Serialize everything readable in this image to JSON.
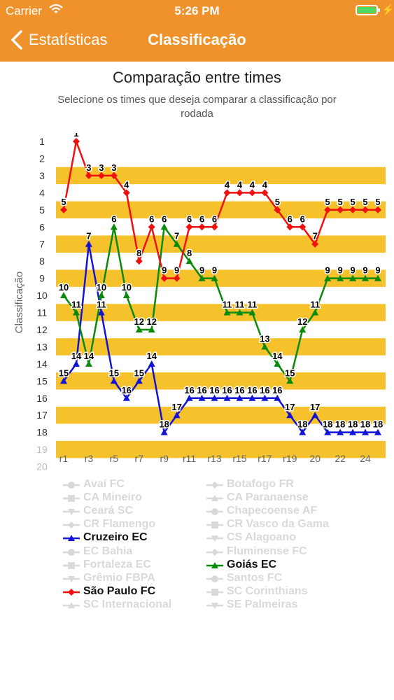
{
  "status_bar": {
    "carrier": "Carrier",
    "time": "5:26 PM"
  },
  "nav": {
    "back_label": "Estatísticas",
    "title": "Classificação"
  },
  "header": {
    "title": "Comparação entre times",
    "subtitle": "Selecione os times que deseja comparar a classificação por rodada"
  },
  "colors": {
    "accent": "#f0922c",
    "band": "#f6c22c",
    "cruzeiro": "#1313d6",
    "goias": "#0a8a0a",
    "saopaulo": "#f01010",
    "legend_off": "#d9d9d9"
  },
  "legend": {
    "left": [
      {
        "label": "Avaí FC",
        "marker": "circle",
        "active": false
      },
      {
        "label": "CA Mineiro",
        "marker": "square",
        "active": false
      },
      {
        "label": "Ceará SC",
        "marker": "triangle-down",
        "active": false
      },
      {
        "label": "CR Flamengo",
        "marker": "diamond",
        "active": false
      },
      {
        "label": "Cruzeiro EC",
        "marker": "triangle",
        "active": true,
        "color": "#1313d6"
      },
      {
        "label": "EC Bahia",
        "marker": "circle",
        "active": false
      },
      {
        "label": "Fortaleza EC",
        "marker": "square",
        "active": false
      },
      {
        "label": "Grêmio FBPA",
        "marker": "triangle-down",
        "active": false
      },
      {
        "label": "São Paulo FC",
        "marker": "diamond",
        "active": true,
        "color": "#f01010"
      },
      {
        "label": "SC Internacional",
        "marker": "triangle",
        "active": false
      }
    ],
    "right": [
      {
        "label": "Botafogo FR",
        "marker": "diamond",
        "active": false
      },
      {
        "label": "CA Paranaense",
        "marker": "triangle",
        "active": false
      },
      {
        "label": "Chapecoense AF",
        "marker": "circle",
        "active": false
      },
      {
        "label": "CR Vasco da Gama",
        "marker": "square",
        "active": false
      },
      {
        "label": "CS Alagoano",
        "marker": "triangle-down",
        "active": false
      },
      {
        "label": "Fluminense FC",
        "marker": "diamond",
        "active": false
      },
      {
        "label": "Goiás EC",
        "marker": "triangle",
        "active": true,
        "color": "#0a8a0a"
      },
      {
        "label": "Santos FC",
        "marker": "circle",
        "active": false
      },
      {
        "label": "SC Corinthians",
        "marker": "square",
        "active": false
      },
      {
        "label": "SE Palmeiras",
        "marker": "triangle-down",
        "active": false
      }
    ]
  },
  "chart_data": {
    "type": "line",
    "ylabel": "Classificação",
    "xlabel": "",
    "y_reversed": true,
    "ylim": [
      1,
      20
    ],
    "yticks": [
      1,
      2,
      3,
      4,
      5,
      6,
      7,
      8,
      9,
      10,
      11,
      12,
      13,
      14,
      15,
      16,
      17,
      18,
      19,
      20
    ],
    "xlim": [
      1,
      25
    ],
    "xticks": [
      {
        "x": 1,
        "label": "r1"
      },
      {
        "x": 3,
        "label": "r3"
      },
      {
        "x": 5,
        "label": "r5"
      },
      {
        "x": 7,
        "label": "r7"
      },
      {
        "x": 9,
        "label": "r9"
      },
      {
        "x": 11,
        "label": "r11"
      },
      {
        "x": 13,
        "label": "r13"
      },
      {
        "x": 15,
        "label": "r15"
      },
      {
        "x": 17,
        "label": "r17"
      },
      {
        "x": 19,
        "label": "r19"
      },
      {
        "x": 21,
        "label": "20"
      },
      {
        "x": 23,
        "label": "22"
      },
      {
        "x": 25,
        "label": "24"
      }
    ],
    "bands": [
      [
        2,
        3
      ],
      [
        4,
        5
      ],
      [
        6,
        7
      ],
      [
        8,
        9
      ],
      [
        10,
        11
      ],
      [
        12,
        13
      ],
      [
        14,
        15
      ],
      [
        16,
        17
      ],
      [
        18,
        19
      ]
    ],
    "x": [
      1,
      2,
      3,
      4,
      5,
      6,
      7,
      8,
      9,
      10,
      11,
      12,
      13,
      14,
      15,
      16,
      17,
      18,
      19,
      20,
      21,
      22,
      23,
      24,
      25,
      26
    ],
    "series": [
      {
        "name": "Cruzeiro EC",
        "color": "#1313d6",
        "marker": "triangle",
        "values": [
          15,
          14,
          7,
          11,
          15,
          16,
          15,
          14,
          18,
          17,
          16,
          16,
          16,
          16,
          16,
          16,
          16,
          16,
          17,
          18,
          17,
          18,
          18,
          18,
          18,
          18
        ]
      },
      {
        "name": "Goiás EC",
        "color": "#0a8a0a",
        "marker": "triangle",
        "values": [
          10,
          11,
          14,
          10,
          6,
          10,
          12,
          12,
          6,
          7,
          8,
          9,
          9,
          11,
          11,
          11,
          13,
          14,
          15,
          12,
          11,
          9,
          9,
          9,
          9,
          9
        ]
      },
      {
        "name": "São Paulo FC",
        "color": "#f01010",
        "marker": "diamond",
        "values": [
          5,
          1,
          3,
          3,
          3,
          4,
          8,
          6,
          9,
          9,
          6,
          6,
          6,
          4,
          4,
          4,
          4,
          5,
          6,
          6,
          7,
          5,
          5,
          5,
          5,
          5
        ]
      }
    ]
  }
}
